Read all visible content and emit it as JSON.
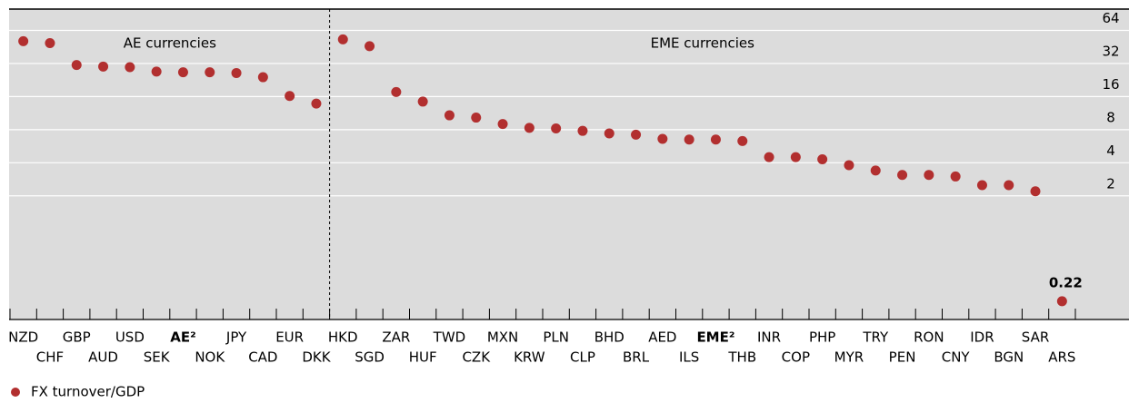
{
  "chart_data": {
    "type": "scatter",
    "categories": [
      "NZD",
      "CHF",
      "GBP",
      "AUD",
      "USD",
      "SEK",
      "AE²",
      "NOK",
      "JPY",
      "CAD",
      "EUR",
      "DKK",
      "HKD",
      "SGD",
      "ZAR",
      "HUF",
      "TWD",
      "CZK",
      "MXN",
      "KRW",
      "PLN",
      "CLP",
      "BHD",
      "BRL",
      "AED",
      "ILS",
      "EME²",
      "THB",
      "INR",
      "COP",
      "PHP",
      "MYR",
      "TRY",
      "PEN",
      "RON",
      "CNY",
      "IDR",
      "BGN",
      "SAR",
      "ARS"
    ],
    "series": [
      {
        "name": "FX turnover/GDP",
        "color": "#b22f2f",
        "values": [
          51,
          49,
          31,
          30,
          29.6,
          27,
          26.6,
          26.6,
          26.2,
          24,
          16.2,
          13.8,
          53,
          46,
          17.6,
          14.4,
          10.8,
          10.3,
          9.0,
          8.3,
          8.2,
          7.8,
          7.4,
          7.2,
          6.6,
          6.5,
          6.5,
          6.3,
          4.5,
          4.5,
          4.3,
          3.8,
          3.4,
          3.1,
          3.1,
          3.0,
          2.5,
          2.5,
          2.2,
          0.22
        ]
      }
    ],
    "sections": [
      {
        "label": "AE currencies",
        "from": "NZD",
        "to": "DKK"
      },
      {
        "label": "EME currencies",
        "from": "HKD",
        "to": "ARS"
      }
    ],
    "log_scale": true,
    "ylim": [
      0.15,
      100
    ],
    "yticks": [
      2,
      4,
      8,
      16,
      32,
      64
    ],
    "grid": true,
    "legend": "bottom-left"
  }
}
